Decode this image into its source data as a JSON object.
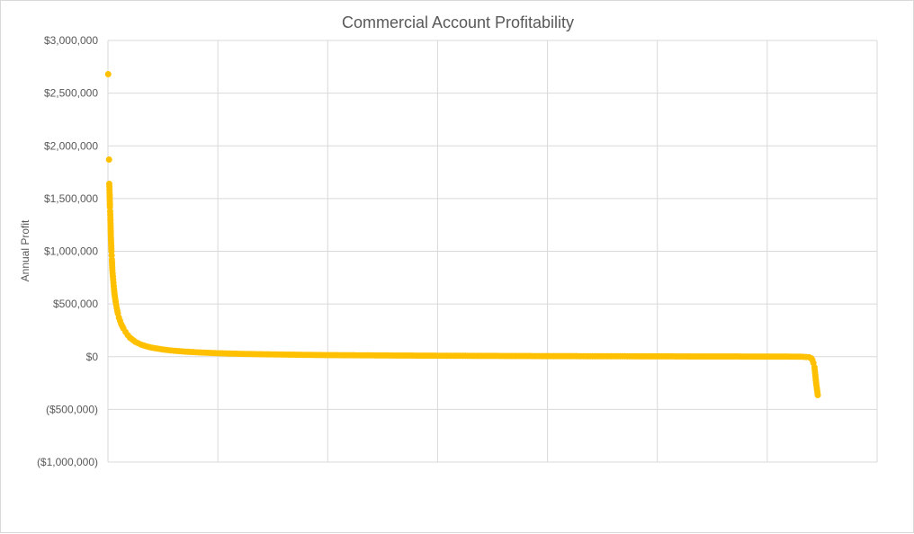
{
  "chart_data": {
    "type": "scatter",
    "title": "Commercial Account Profitability",
    "xlabel": "",
    "ylabel": "Annual Profit",
    "xlim": [
      0,
      7
    ],
    "ylim": [
      -1000000,
      3000000
    ],
    "y_ticks": [
      {
        "value": 3000000,
        "label": "$3,000,000"
      },
      {
        "value": 2500000,
        "label": "$2,500,000"
      },
      {
        "value": 2000000,
        "label": "$2,000,000"
      },
      {
        "value": 1500000,
        "label": "$1,500,000"
      },
      {
        "value": 1000000,
        "label": "$1,000,000"
      },
      {
        "value": 500000,
        "label": "$500,000"
      },
      {
        "value": 0,
        "label": "$0"
      },
      {
        "value": -500000,
        "label": "($500,000)"
      },
      {
        "value": -1000000,
        "label": "($1,000,000)"
      }
    ],
    "x_gridlines": [
      0,
      1,
      2,
      3,
      4,
      5,
      6,
      7
    ],
    "grid": true,
    "legend": "none",
    "marker_color": "#ffc000",
    "series": [
      {
        "points": [
          [
            0.002,
            2680000
          ],
          [
            0.01,
            1870000
          ],
          [
            0.012,
            1640000
          ],
          [
            0.015,
            1555000
          ],
          [
            0.018,
            1420000
          ],
          [
            0.02,
            1380000
          ],
          [
            0.022,
            1320000
          ],
          [
            0.024,
            1240000
          ],
          [
            0.026,
            1150000
          ],
          [
            0.028,
            1100000
          ],
          [
            0.03,
            1050000
          ],
          [
            0.032,
            1000000
          ],
          [
            0.034,
            960000
          ],
          [
            0.036,
            920000
          ],
          [
            0.038,
            870000
          ],
          [
            0.04,
            820000
          ],
          [
            0.045,
            760000
          ],
          [
            0.05,
            700000
          ],
          [
            0.055,
            640000
          ],
          [
            0.06,
            590000
          ],
          [
            0.07,
            520000
          ],
          [
            0.08,
            460000
          ],
          [
            0.09,
            410000
          ],
          [
            0.1,
            370000
          ],
          [
            0.12,
            310000
          ],
          [
            0.14,
            270000
          ],
          [
            0.16,
            235000
          ],
          [
            0.18,
            205000
          ],
          [
            0.2,
            180000
          ],
          [
            0.25,
            140000
          ],
          [
            0.3,
            115000
          ],
          [
            0.35,
            98000
          ],
          [
            0.4,
            85000
          ],
          [
            0.5,
            68000
          ],
          [
            0.6,
            56000
          ],
          [
            0.7,
            48000
          ],
          [
            0.8,
            42000
          ],
          [
            0.9,
            37000
          ],
          [
            1.0,
            33000
          ],
          [
            1.2,
            27000
          ],
          [
            1.4,
            23000
          ],
          [
            1.6,
            20000
          ],
          [
            1.8,
            17000
          ],
          [
            2.0,
            15000
          ],
          [
            2.3,
            13000
          ],
          [
            2.6,
            11000
          ],
          [
            3.0,
            9000
          ],
          [
            3.4,
            7500
          ],
          [
            3.8,
            6000
          ],
          [
            4.2,
            5000
          ],
          [
            4.6,
            4000
          ],
          [
            5.0,
            3000
          ],
          [
            5.4,
            2200
          ],
          [
            5.8,
            1500
          ],
          [
            6.1,
            800
          ],
          [
            6.3,
            200
          ],
          [
            6.38,
            -5000
          ],
          [
            6.4,
            -15000
          ],
          [
            6.41,
            -30000
          ],
          [
            6.42,
            -60000
          ],
          [
            6.43,
            -100000
          ],
          [
            6.435,
            -150000
          ],
          [
            6.44,
            -200000
          ],
          [
            6.445,
            -250000
          ],
          [
            6.46,
            -365000
          ]
        ]
      }
    ]
  }
}
